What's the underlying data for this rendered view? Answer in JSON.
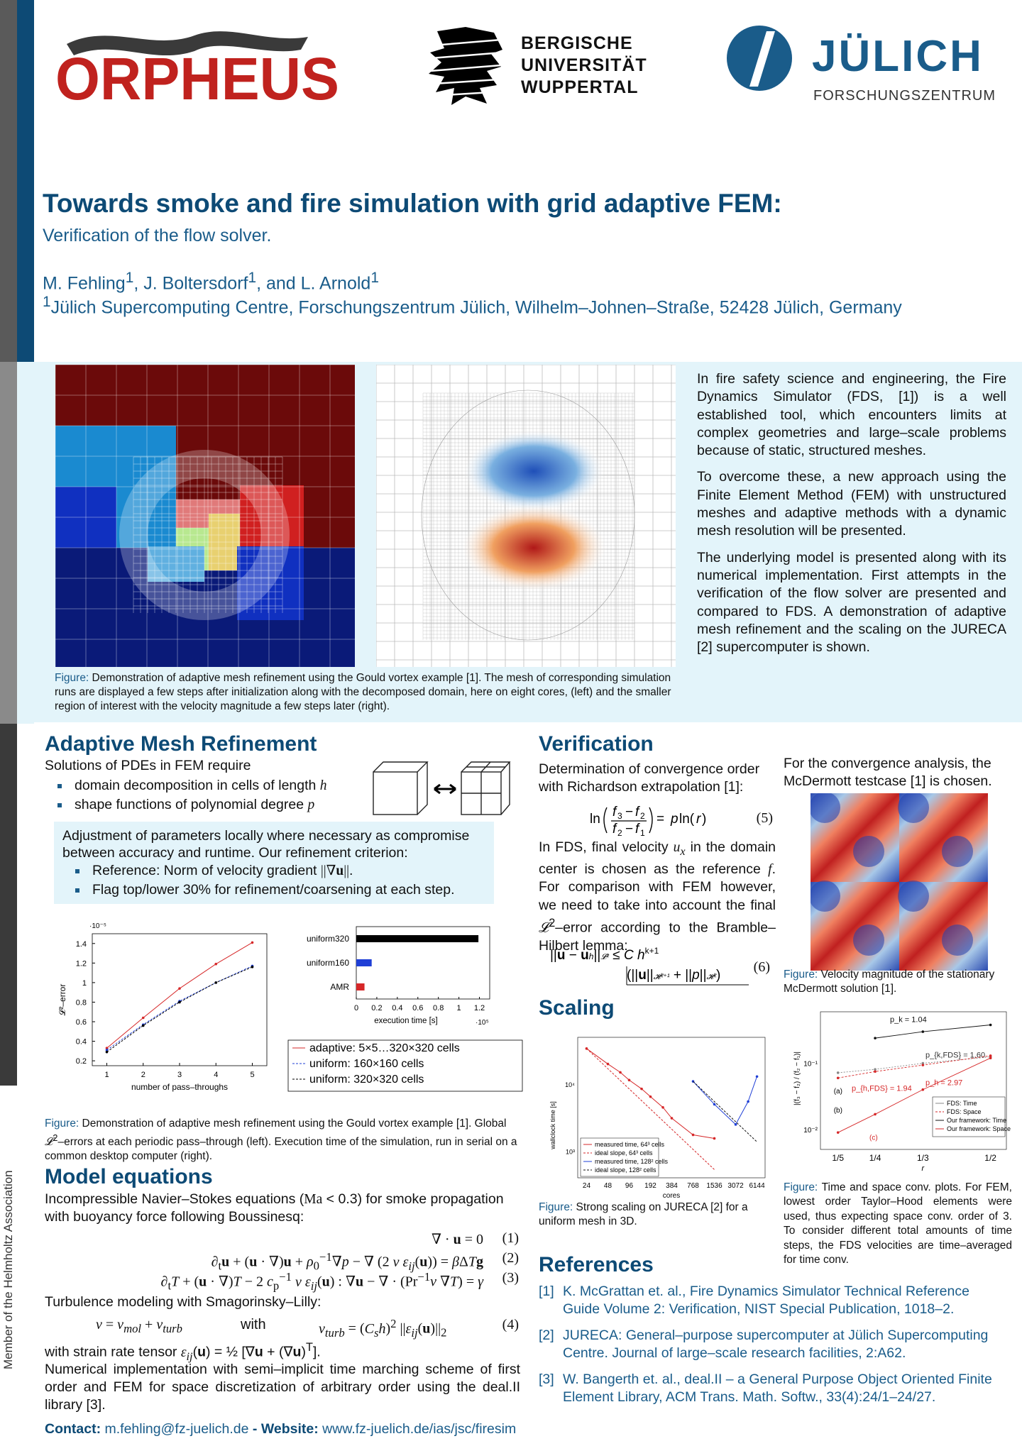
{
  "logos": {
    "orpheus": "ORPHEUS",
    "wuppertal": [
      "BERGISCHE",
      "UNIVERSITÄT",
      "WUPPERTAL"
    ],
    "juelich_name": "JÜLICH",
    "juelich_sub": "FORSCHUNGSZENTRUM"
  },
  "colors": {
    "primary": "#0d4a75",
    "accent": "#1a5c8a",
    "band": "#e3f4fa",
    "orpheus_red": "#c0221e"
  },
  "header": {
    "title": "Towards smoke and fire simulation with grid adaptive FEM:",
    "subtitle": "Verification of the flow solver.",
    "authors": "M. Fehling<sup>1</sup>, J. Boltersdorf<sup>1</sup>, and L. Arnold<sup>1</sup>",
    "affiliation": "<sup>1</sup>Jülich Supercomputing Centre, Forschungszentrum Jülich, Wilhelm–Johnen–Straße, 52428 Jülich, Germany"
  },
  "intro": {
    "figure_caption": "<span class='blue'>Figure:</span> Demonstration of adaptive mesh refinement using the Gould vortex example [1]. The mesh of corresponding simulation runs are displayed a few steps after initialization along with the decomposed domain, here on eight cores, (left) and the smaller region of interest with the velocity magnitude a few steps later (right).",
    "paragraphs": [
      "In fire safety science and engineering, the Fire Dynamics Simulator (FDS, [1]) is a well established tool, which encounters limits at complex geometries and large–scale problems because of static, structured meshes.",
      "To overcome these, a new approach using the Finite Element Method (FEM) with unstructured meshes and adaptive methods with a dynamic mesh resolution will be presented.",
      "The underlying model is presented along with its numerical implementation. First attempts in the verification of the flow solver are presented and compared to FDS. A demonstration of adaptive mesh refinement and the scaling on the JURECA [2] supercomputer is shown."
    ]
  },
  "amr": {
    "heading": "Adaptive Mesh Refinement",
    "lead": "Solutions of PDEs in FEM require",
    "bullets": [
      "domain decomposition in cells of length <i class='math'>h</i>",
      "shape functions of polynomial degree <i class='math'>p</i>"
    ],
    "box_text": "Adjustment of parameters locally where necessary as compromise between accuracy and runtime. Our refinement criterion:",
    "box_bullets": [
      "Reference: Norm of velocity gradient <span class='math' style='font-style:normal'>||∇<b>u</b>||</span>.",
      "Flag top/lower 30% for refinement/coarsening at each step."
    ],
    "figure_caption": "<span class='blue'>Figure:</span> Demonstration of adaptive mesh refinement using the Gould vortex example [1]. Global <i class='math'>𝓛</i><sup>2</sup>–errors at each periodic pass–through (left). Execution time of the simulation, run in serial on a common desktop computer (right)."
  },
  "model": {
    "heading": "Model equations",
    "lead": "Incompressible Navier–Stokes equations (<span class='math' style='font-style:normal'>Ma</span> &lt; 0.3) for smoke propagation with buoyancy force following Boussinesq:",
    "equations": [
      {
        "lhs": "∇ · <b>u</b> = 0",
        "num": "(1)"
      },
      {
        "lhs": "∂<sub>t</sub><b>u</b> + (<b>u</b> · ∇)<b>u</b> + <i>ρ</i><sub>0</sub><sup>−1</sup>∇<i>p</i> − ∇ (2 <i>ν ε<sub>ij</sub></i>(<b>u</b>)) = <i>β</i>Δ<i>T</i><b>g</b>",
        "num": "(2)"
      },
      {
        "lhs": "∂<sub>t</sub><i>T</i> + (<b>u</b> · ∇)<i>T</i> − 2 <i>c</i><sub>p</sub><sup>−1</sup> <i>ν ε<sub>ij</sub></i>(<b>u</b>) : ∇<b>u</b> − ∇ · (Pr<sup>−1</sup><i>ν</i> ∇<i>T</i>) = <i>γ</i>",
        "num": "(3)"
      }
    ],
    "turb_lead": "Turbulence modeling with Smagorinsky–Lilly:",
    "eq4_left": "<i>ν</i> = <i>ν<sub>mol</sub></i> + <i>ν<sub>turb</sub></i>",
    "eq4_with": "with",
    "eq4_right": "<i>ν<sub>turb</sub></i> = (<i>C<sub>s</sub>h</i>)<sup>2</sup> ||<i>ε<sub>ij</sub></i>(<b>u</b>)||<sub>2</sub>",
    "eq4_num": "(4)",
    "strain": "with strain rate tensor <span class='math'>ε<sub>ij</sub></span>(<b>u</b>) = ½ [∇<b>u</b> + (∇<b>u</b>)<sup>T</sup>].",
    "implementation": "Numerical implementation with semi–implicit time marching scheme of first order and FEM for space discretization of arbitrary order using the deal.II library [3]."
  },
  "contact": {
    "contact_label": "Contact:",
    "email": "m.fehling@fz-juelich.de",
    "sep": "-",
    "website_label": "Website:",
    "website": "www.fz-juelich.de/ias/jsc/firesim"
  },
  "verification": {
    "heading": "Verification",
    "lead": "Determination of convergence order with Richardson extrapolation [1]:",
    "eq5_num": "(5)",
    "text": "In FDS, final velocity <i class='math'>u<sub>x</sub></i> in the domain center is chosen as the reference <i class='math'>f</i>. For comparison with FEM however, we need to take into account the final <i class='math'>𝓛</i><sup>2</sup>–error according to the Bramble–Hilbert lemma:",
    "eq6_num": "(6)",
    "right_text": "For the convergence analysis, the McDermott testcase [1] is chosen.",
    "mcd_caption": "<span class='blue'>Figure:</span> Velocity magnitude of the stationary McDermott solution [1].",
    "conv_caption": "<span class='blue'>Figure:</span> Time and space conv. plots. For FEM, lowest order Taylor–Hood elements were used, thus expecting space conv. order of 3. To consider different total amounts of time steps, the FDS velocities are time–averaged for time conv."
  },
  "scaling": {
    "heading": "Scaling",
    "caption": "<span class='blue'>Figure:</span> Strong scaling on JURECA [2] for a uniform mesh in 3D."
  },
  "references": {
    "heading": "References",
    "items": [
      {
        "n": "[1]",
        "text": "K. McGrattan et. al., Fire Dynamics Simulator Technical Reference Guide Volume 2: Verification, NIST Special Publication, 1018–2."
      },
      {
        "n": "[2]",
        "text": "JURECA: General–purpose supercomputer at Jülich Supercomputing Centre. Journal of large–scale research facilities, 2:A62."
      },
      {
        "n": "[3]",
        "text": "W. Bangerth et. al., deal.II – a General Purpose Object Oriented Finite Element Library, ACM Trans. Math. Softw., 33(4):24/1–24/27."
      }
    ]
  },
  "sidebar_text": "Member of the Helmholtz Association",
  "chart_data": [
    {
      "type": "line",
      "id": "l2-error",
      "xlabel": "number of pass–throughs",
      "ylabel": "𝓛²–error",
      "y_scale_label": "·10⁻⁵",
      "x": [
        1,
        2,
        3,
        4,
        5
      ],
      "xlim": [
        0.6,
        5.4
      ],
      "ylim": [
        0.15,
        1.5
      ],
      "yticks": [
        0.2,
        0.4,
        0.6,
        0.8,
        1,
        1.2,
        1.4
      ],
      "series": [
        {
          "name": "adaptive: 5×5…320×320 cells",
          "color": "#d62728",
          "values": [
            0.33,
            0.64,
            0.94,
            1.19,
            1.41
          ]
        },
        {
          "name": "uniform: 160×160 cells",
          "color": "#1f3fd6",
          "values": [
            0.31,
            0.57,
            0.81,
            1.0,
            1.17
          ]
        },
        {
          "name": "uniform: 320×320 cells",
          "color": "#000000",
          "values": [
            0.29,
            0.56,
            0.8,
            1.0,
            1.16
          ]
        }
      ]
    },
    {
      "type": "bar",
      "id": "exec-time",
      "orientation": "horizontal",
      "xlabel": "execution time [s]",
      "x_scale_label": "·10⁵",
      "categories": [
        "uniform320",
        "uniform160",
        "AMR"
      ],
      "values": [
        1.19,
        0.15,
        0.08
      ],
      "colors": [
        "#000000",
        "#1f3fd6",
        "#d62728"
      ],
      "xlim": [
        0,
        1.3
      ],
      "xticks": [
        0,
        0.2,
        0.4,
        0.6,
        0.8,
        1,
        1.2
      ]
    },
    {
      "type": "line",
      "id": "scaling",
      "xlabel": "cores",
      "ylabel": "wallclock time [s]",
      "x_scale": "log",
      "y_scale": "log",
      "xticks": [
        24,
        48,
        96,
        192,
        384,
        768,
        1536,
        3072,
        6144
      ],
      "ytick_labels": [
        "10⁴",
        "10³"
      ],
      "series": [
        {
          "name": "measured time, 64³ cells",
          "color": "#d62728",
          "x": [
            24,
            48,
            72,
            96,
            144,
            192,
            288,
            384,
            768,
            1536
          ],
          "values": [
            34000,
            20000,
            15000,
            11500,
            8500,
            6500,
            4500,
            3100,
            1750,
            1550
          ]
        },
        {
          "name": "ideal slope, 64³ cells",
          "color": "#d62728",
          "dashed": true,
          "x": [
            24,
            1536
          ],
          "values": [
            34000,
            531
          ]
        },
        {
          "name": "measured time, 128² cells",
          "color": "#1f3fd6",
          "x": [
            768,
            1536,
            3072,
            4608,
            6144
          ],
          "values": [
            11000,
            5000,
            2500,
            5500,
            13000
          ]
        },
        {
          "name": "ideal slope, 128² cells",
          "color": "#111111",
          "dashed": true,
          "x": [
            768,
            6144
          ],
          "values": [
            11000,
            1375
          ]
        }
      ],
      "legend": "bottom-left"
    },
    {
      "type": "line",
      "id": "convergence",
      "xlabel": "r",
      "ylabel": "|(f₃ − f₂) / (f₂ − f₁)|",
      "x_scale": "log",
      "y_scale": "log",
      "xtick_labels": [
        "1/5",
        "1/4",
        "1/3",
        "1/2"
      ],
      "ytick_labels": [
        "10⁻¹",
        "10⁻²"
      ],
      "annotations": [
        "(a)",
        "(b)",
        "(c)"
      ],
      "series": [
        {
          "name": "FDS: Time",
          "color": "#888888",
          "x": [
            0.2,
            0.25,
            0.333,
            0.5
          ],
          "values": [
            0.072,
            0.081,
            0.1,
            0.125
          ],
          "label": "p_{k,FDS} = 1.60"
        },
        {
          "name": "FDS: Space",
          "color": "#d62728",
          "dashed": true,
          "x": [
            0.2,
            0.25,
            0.333,
            0.5
          ],
          "values": [
            0.06,
            0.075,
            0.094,
            0.13
          ],
          "label": "p_{h,FDS} = 1.94"
        },
        {
          "name": "Our framework: Time",
          "color": "#111111",
          "x": [
            0.25,
            0.333,
            0.5
          ],
          "values": [
            0.24,
            0.3,
            0.38
          ],
          "label": "p_k = 1.04"
        },
        {
          "name": "Our framework: Space",
          "color": "#d62728",
          "x": [
            0.2,
            0.25,
            0.333,
            0.5
          ],
          "values": [
            0.009,
            0.017,
            0.04,
            0.12
          ],
          "label": "p_h = 2.97"
        }
      ]
    }
  ]
}
